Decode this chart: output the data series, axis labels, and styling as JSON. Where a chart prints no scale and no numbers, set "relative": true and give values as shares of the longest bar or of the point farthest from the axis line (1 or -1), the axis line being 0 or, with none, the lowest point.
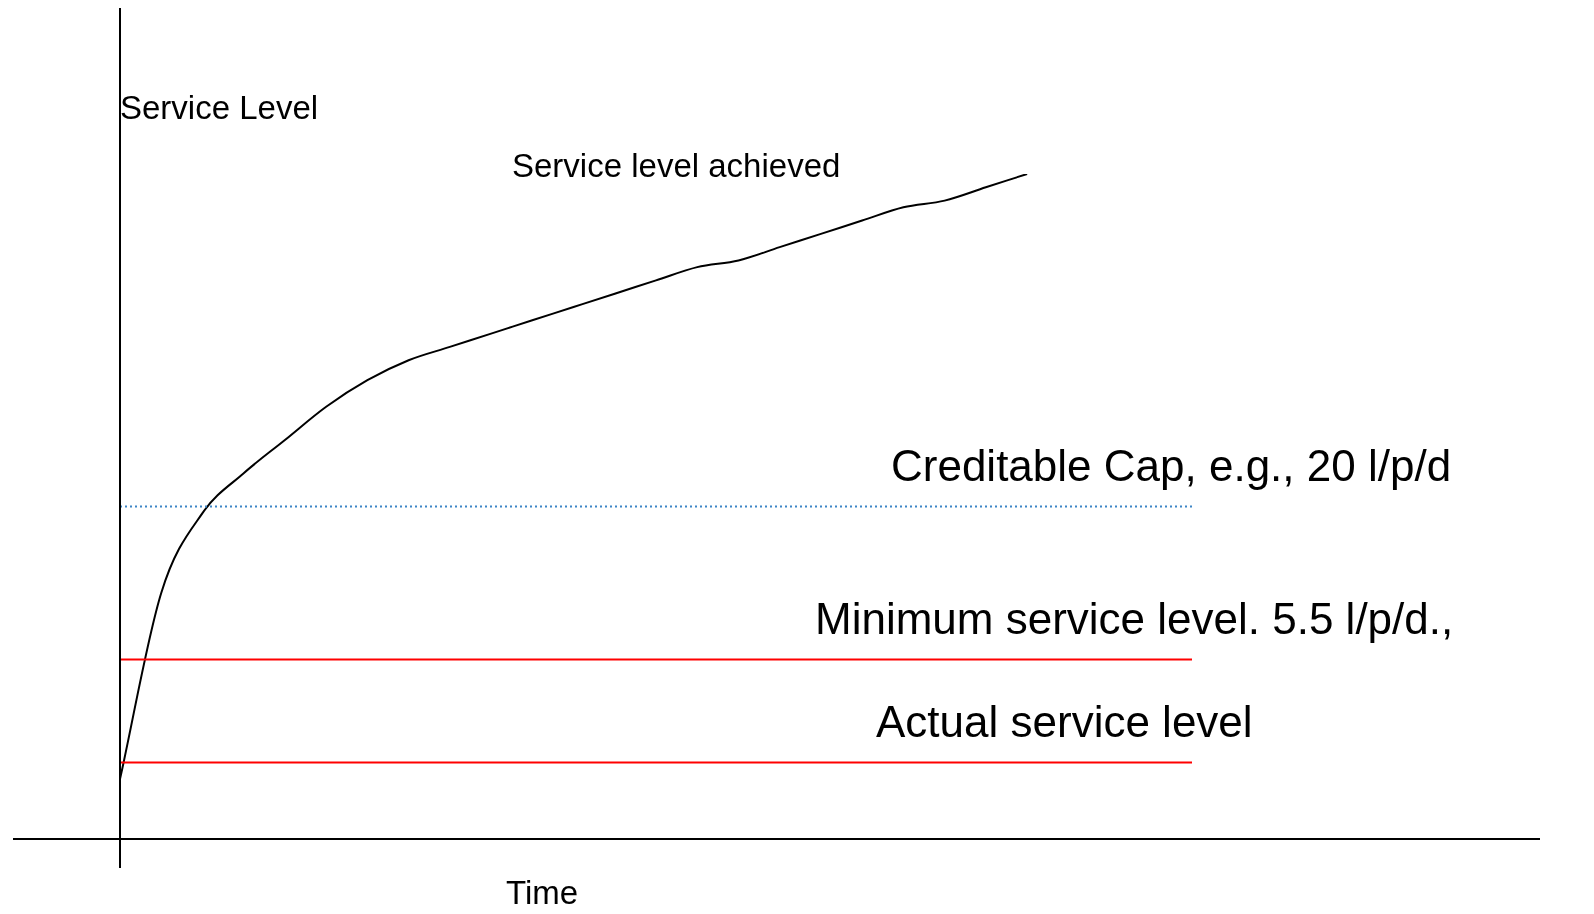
{
  "chart_data": {
    "type": "line",
    "relative": true,
    "xlabel": "Time",
    "ylabel": "Service Level",
    "tick_labels": false,
    "legend": false,
    "marker": "none",
    "categories": [
      null,
      null,
      null,
      null,
      null,
      null,
      null,
      null,
      null,
      null,
      null,
      null,
      null,
      null,
      null,
      null,
      null,
      null,
      null,
      null,
      null,
      null,
      null,
      null,
      null,
      null,
      null
    ],
    "series": [
      {
        "name": "Service level achieved",
        "color": "#000000",
        "values": [
          0.09,
          0.37,
          0.49,
          0.55,
          0.6,
          0.65,
          0.69,
          0.72,
          0.74,
          0.76,
          0.78,
          0.8,
          0.82,
          0.84,
          0.86,
          0.87,
          0.89,
          0.91,
          0.93,
          0.95,
          0.96,
          0.98,
          1.0,
          null,
          null,
          null,
          null
        ]
      }
    ],
    "ref_lines": [
      {
        "axis": "y",
        "value": 0.5,
        "label": "Creditable Cap, e.g., 20 l/p/d",
        "color": "#3d85c6",
        "line_style": "dotted"
      },
      {
        "axis": "y",
        "value": 0.27,
        "label": "Minimum service level. 5.5 l/p/d.,",
        "color": "#ff0000",
        "line_style": "solid"
      },
      {
        "axis": "y",
        "value": 0.115,
        "label": "Actual service level",
        "color": "#ff0000",
        "line_style": "solid"
      }
    ]
  }
}
